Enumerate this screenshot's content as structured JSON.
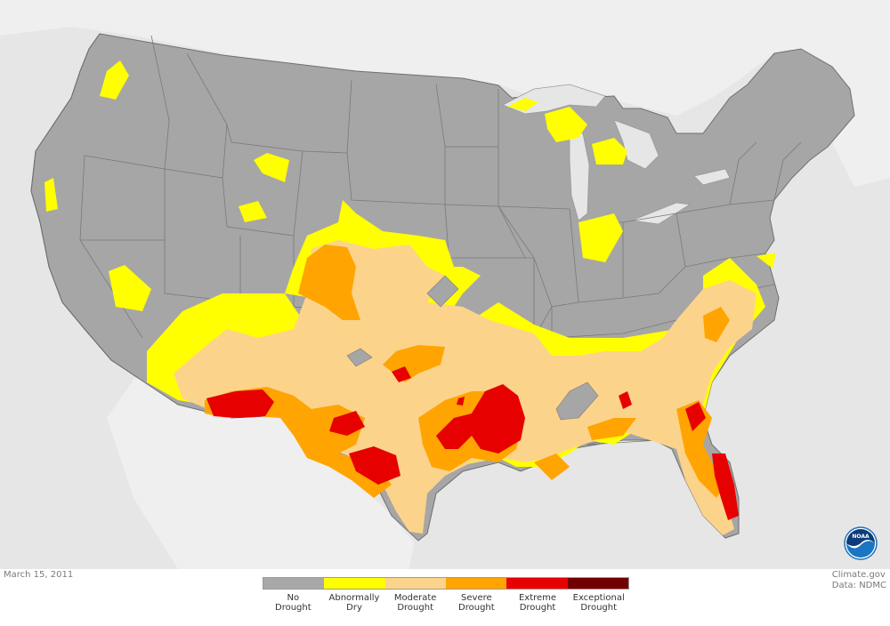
{
  "date": "March 15, 2011",
  "credit": {
    "line1": "Climate.gov",
    "line2": "Data: NDMC"
  },
  "logo_text": "NOAA",
  "colors": {
    "ocean": "#e8e8e8",
    "land_foreign": "#efefef",
    "border": "#777777"
  },
  "legend": [
    {
      "label": "No\nDrought",
      "color": "#a8a8a8"
    },
    {
      "label": "Abnormally\nDry",
      "color": "#ffff00"
    },
    {
      "label": "Moderate\nDrought",
      "color": "#fcd38b"
    },
    {
      "label": "Severe\nDrought",
      "color": "#ffa400"
    },
    {
      "label": "Extreme\nDrought",
      "color": "#e60000"
    },
    {
      "label": "Exceptional\nDrought",
      "color": "#730000"
    }
  ]
}
